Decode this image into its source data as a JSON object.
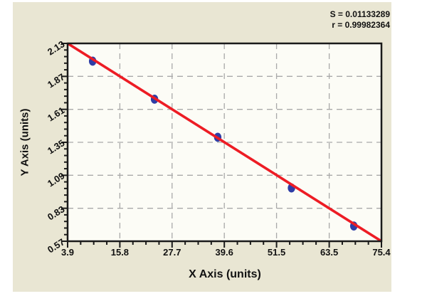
{
  "window": {
    "background": "#ffffff"
  },
  "panel": {
    "background": "#e9e6d3"
  },
  "stats": {
    "s_label": "S = 0.01133289",
    "r_label": "r = 0.99982364"
  },
  "chart_data": {
    "type": "scatter",
    "title": "",
    "xlabel": "X Axis (units)",
    "ylabel": "Y Axis (units)",
    "xlim": [
      3.9,
      75.4
    ],
    "ylim": [
      0.57,
      2.13
    ],
    "xticks": [
      3.9,
      15.8,
      27.7,
      39.6,
      51.5,
      63.5,
      75.4
    ],
    "yticks": [
      0.57,
      0.83,
      1.09,
      1.35,
      1.61,
      1.87,
      2.13
    ],
    "xtick_labels": [
      "3.9",
      "15.8",
      "27.7",
      "39.6",
      "51.5",
      "63.5",
      "75.4"
    ],
    "ytick_labels": [
      "0.57",
      "0.83",
      "1.09",
      "1.35",
      "1.61",
      "1.87",
      "2.13"
    ],
    "x_minor_per_interval": 3,
    "y_minor_per_interval": 4,
    "grid": {
      "style": "dashed",
      "color": "#a9a9a9",
      "at": "major-ticks-interior"
    },
    "legend": "none",
    "annotations": [
      "S = 0.01133289",
      "r = 0.99982364"
    ],
    "plot_background": "#fcfcf6",
    "frame_color": "#1a1a1a",
    "series": [
      {
        "name": "standard-points",
        "type": "scatter",
        "marker": "ellipse",
        "color": "#2e3da6",
        "points": [
          [
            9.6,
            1.99
          ],
          [
            23.7,
            1.69
          ],
          [
            38.1,
            1.39
          ],
          [
            54.9,
            0.99
          ],
          [
            69.1,
            0.69
          ]
        ]
      },
      {
        "name": "linear-fit",
        "type": "line",
        "color": "#ed1c24",
        "points": [
          [
            3.9,
            2.13
          ],
          [
            75.4,
            0.57
          ]
        ]
      }
    ]
  }
}
